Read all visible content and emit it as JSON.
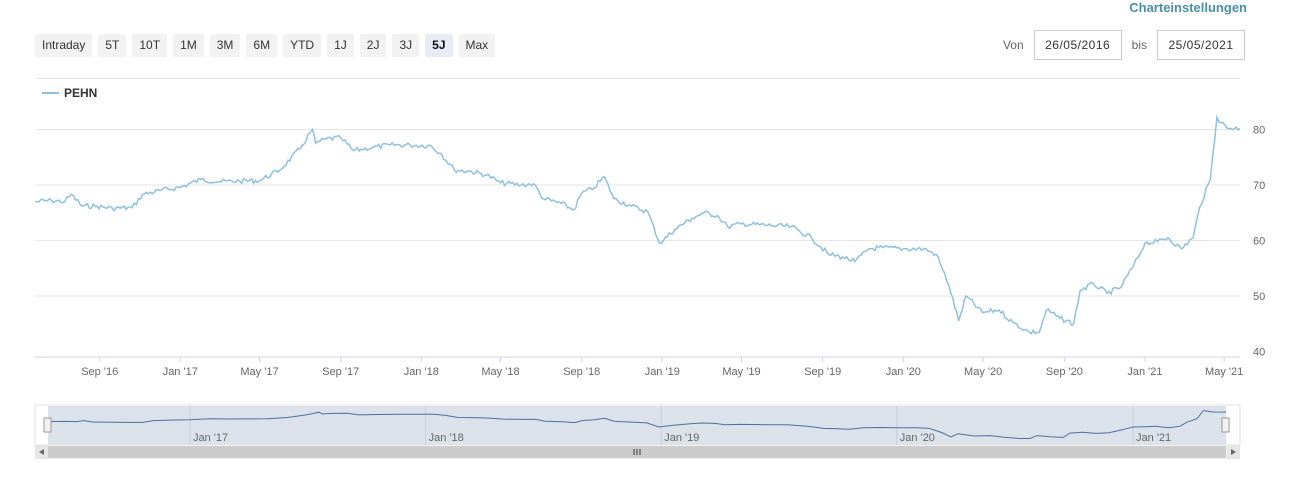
{
  "settings_label": "Charteinstellungen",
  "range_buttons": [
    "Intraday",
    "5T",
    "10T",
    "1M",
    "3M",
    "6M",
    "YTD",
    "1J",
    "2J",
    "3J",
    "5J",
    "Max"
  ],
  "selected_range": "5J",
  "date_from_label": "Von",
  "date_from": "26/05/2016",
  "date_to_label": "bis",
  "date_to": "25/05/2021",
  "colors": {
    "series": "#8fc1df",
    "navigator_series": "#4f6f9f",
    "navigator_mask": "#dbe2ea"
  },
  "chart_data": {
    "type": "line",
    "series": [
      {
        "name": "PEHN",
        "points": [
          [
            "2016-05-26",
            67.0
          ],
          [
            "2016-06-20",
            67.2
          ],
          [
            "2016-07-10",
            67.0
          ],
          [
            "2016-07-20",
            68.3
          ],
          [
            "2016-08-05",
            66.2
          ],
          [
            "2016-08-25",
            66.2
          ],
          [
            "2016-09-20",
            65.8
          ],
          [
            "2016-10-20",
            65.9
          ],
          [
            "2016-11-05",
            68.3
          ],
          [
            "2016-12-01",
            69.0
          ],
          [
            "2017-01-01",
            69.6
          ],
          [
            "2017-02-01",
            71.0
          ],
          [
            "2017-03-01",
            70.6
          ],
          [
            "2017-04-01",
            70.7
          ],
          [
            "2017-05-01",
            70.8
          ],
          [
            "2017-06-01",
            72.7
          ],
          [
            "2017-07-01",
            76.5
          ],
          [
            "2017-07-20",
            80.0
          ],
          [
            "2017-07-25",
            77.5
          ],
          [
            "2017-08-10",
            78.3
          ],
          [
            "2017-09-01",
            78.5
          ],
          [
            "2017-09-20",
            76.2
          ],
          [
            "2017-10-20",
            76.8
          ],
          [
            "2017-11-15",
            77.2
          ],
          [
            "2017-12-15",
            77.2
          ],
          [
            "2018-01-15",
            77.1
          ],
          [
            "2018-02-01",
            75.5
          ],
          [
            "2018-02-20",
            72.7
          ],
          [
            "2018-03-15",
            72.5
          ],
          [
            "2018-04-10",
            71.8
          ],
          [
            "2018-05-01",
            70.4
          ],
          [
            "2018-06-01",
            70.0
          ],
          [
            "2018-06-20",
            70.2
          ],
          [
            "2018-07-05",
            67.5
          ],
          [
            "2018-08-01",
            66.7
          ],
          [
            "2018-08-20",
            65.5
          ],
          [
            "2018-09-01",
            68.5
          ],
          [
            "2018-09-20",
            69.5
          ],
          [
            "2018-10-05",
            71.5
          ],
          [
            "2018-10-20",
            67.5
          ],
          [
            "2018-11-15",
            66.2
          ],
          [
            "2018-12-10",
            65.2
          ],
          [
            "2018-12-28",
            59.5
          ],
          [
            "2019-01-20",
            62.0
          ],
          [
            "2019-02-15",
            64.0
          ],
          [
            "2019-03-05",
            65.0
          ],
          [
            "2019-03-25",
            64.5
          ],
          [
            "2019-04-10",
            62.5
          ],
          [
            "2019-05-01",
            63.0
          ],
          [
            "2019-06-15",
            62.7
          ],
          [
            "2019-07-15",
            62.5
          ],
          [
            "2019-08-15",
            60.5
          ],
          [
            "2019-09-10",
            57.5
          ],
          [
            "2019-10-01",
            57.0
          ],
          [
            "2019-10-20",
            56.2
          ],
          [
            "2019-11-10",
            58.5
          ],
          [
            "2019-12-01",
            58.7
          ],
          [
            "2020-01-01",
            58.5
          ],
          [
            "2020-02-01",
            58.5
          ],
          [
            "2020-02-20",
            57.5
          ],
          [
            "2020-03-10",
            52.0
          ],
          [
            "2020-03-25",
            45.5
          ],
          [
            "2020-04-05",
            50.0
          ],
          [
            "2020-04-30",
            47.0
          ],
          [
            "2020-05-25",
            47.5
          ],
          [
            "2020-06-15",
            45.2
          ],
          [
            "2020-07-10",
            43.5
          ],
          [
            "2020-07-25",
            43.5
          ],
          [
            "2020-08-05",
            47.5
          ],
          [
            "2020-08-25",
            46.0
          ],
          [
            "2020-09-15",
            45.0
          ],
          [
            "2020-09-25",
            51.0
          ],
          [
            "2020-10-15",
            52.2
          ],
          [
            "2020-11-05",
            50.5
          ],
          [
            "2020-11-25",
            51.5
          ],
          [
            "2020-12-15",
            55.5
          ],
          [
            "2021-01-01",
            59.5
          ],
          [
            "2021-01-20",
            59.8
          ],
          [
            "2021-02-05",
            60.5
          ],
          [
            "2021-02-25",
            58.5
          ],
          [
            "2021-03-15",
            60.5
          ],
          [
            "2021-03-25",
            66.0
          ],
          [
            "2021-04-10",
            71.0
          ],
          [
            "2021-04-20",
            82.2
          ],
          [
            "2021-05-05",
            80.3
          ],
          [
            "2021-05-25",
            80.2
          ]
        ]
      }
    ],
    "x_range": [
      "2016-05-26",
      "2021-05-25"
    ],
    "y_range": [
      40,
      82
    ],
    "y_ticks": [
      40,
      50,
      60,
      70,
      80
    ],
    "x_tick_labels": [
      "Sep '16",
      "Jan '17",
      "May '17",
      "Sep '17",
      "Jan '18",
      "May '18",
      "Sep '18",
      "Jan '19",
      "May '19",
      "Sep '19",
      "Jan '20",
      "May '20",
      "Sep '20",
      "Jan '21",
      "May '21"
    ],
    "x_tick_dates": [
      "2016-09-01",
      "2017-01-01",
      "2017-05-01",
      "2017-09-01",
      "2018-01-01",
      "2018-05-01",
      "2018-09-01",
      "2019-01-01",
      "2019-05-01",
      "2019-09-01",
      "2020-01-01",
      "2020-05-01",
      "2020-09-01",
      "2021-01-01",
      "2021-05-01"
    ],
    "navigator_tick_labels": [
      "Jan '17",
      "Jan '18",
      "Jan '19",
      "Jan '20",
      "Jan '21"
    ],
    "navigator_tick_dates": [
      "2017-01-01",
      "2018-01-01",
      "2019-01-01",
      "2020-01-01",
      "2021-01-01"
    ],
    "grid": "horizontal",
    "legend_position": "top-left"
  }
}
